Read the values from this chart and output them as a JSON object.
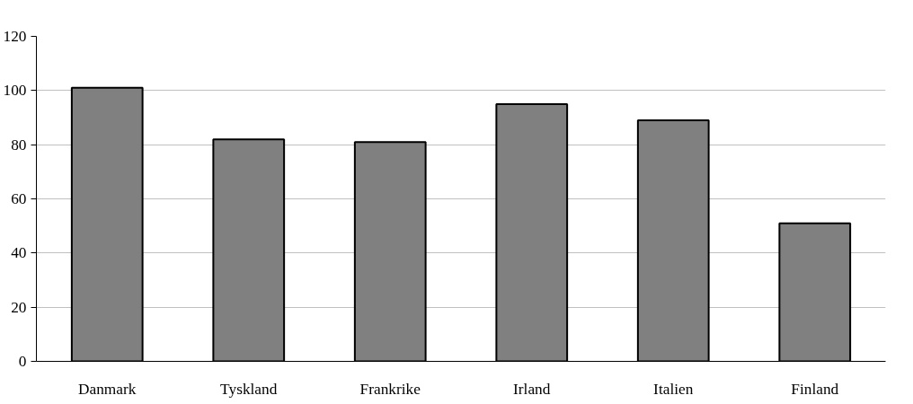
{
  "chart_data": {
    "type": "bar",
    "categories": [
      "Danmark",
      "Tyskland",
      "Frankrike",
      "Irland",
      "Italien",
      "Finland"
    ],
    "values": [
      101,
      82,
      81,
      95,
      89,
      51
    ],
    "color": "#808080",
    "ylim": [
      0,
      120
    ],
    "yticks": [
      0,
      20,
      40,
      60,
      80,
      100,
      120
    ],
    "grid": "y"
  }
}
